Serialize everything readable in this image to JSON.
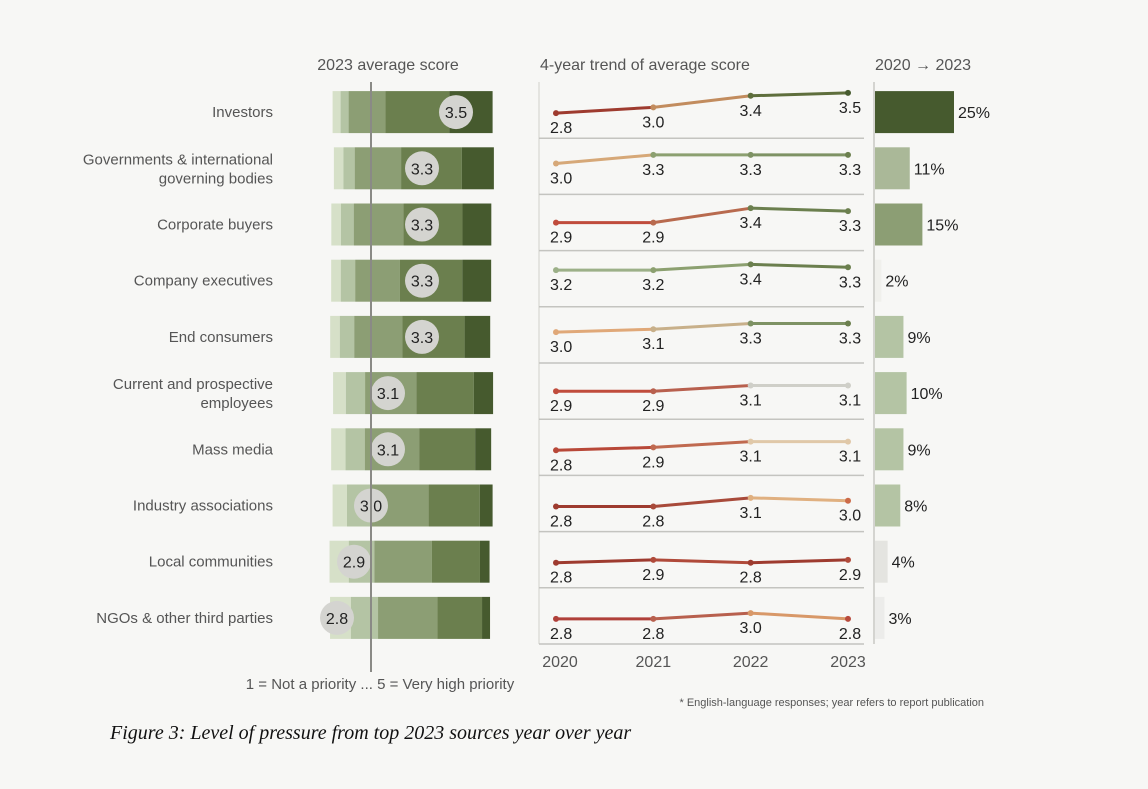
{
  "chart_data": [
    {
      "type": "bar",
      "title": "2023 average score",
      "note": "1 = Not a priority ... 5 = Very high priority",
      "categories": [
        [
          "Investors"
        ],
        [
          "Governments & international",
          "governing bodies"
        ],
        [
          "Corporate buyers"
        ],
        [
          "Company executives"
        ],
        [
          "End consumers"
        ],
        [
          "Current and prospective",
          "employees"
        ],
        [
          "Mass media"
        ],
        [
          "Industry associations"
        ],
        [
          "Local communities"
        ],
        [
          "NGOs & other third parties"
        ]
      ],
      "values": [
        3.5,
        3.3,
        3.3,
        3.3,
        3.3,
        3.1,
        3.1,
        3.0,
        2.9,
        2.8
      ],
      "value_labels": [
        "3.5",
        "3.3",
        "3.3",
        "3.3",
        "3.3",
        "3.1",
        "3.1",
        "3.0",
        "2.9",
        "2.8"
      ],
      "segment_scale": [
        "1",
        "2",
        "3",
        "4",
        "5"
      ],
      "distribution": [
        [
          0.05,
          0.05,
          0.23,
          0.4,
          0.27
        ],
        [
          0.06,
          0.07,
          0.29,
          0.38,
          0.2
        ],
        [
          0.06,
          0.08,
          0.31,
          0.37,
          0.18
        ],
        [
          0.06,
          0.09,
          0.28,
          0.39,
          0.18
        ],
        [
          0.06,
          0.09,
          0.3,
          0.39,
          0.16
        ],
        [
          0.08,
          0.12,
          0.32,
          0.36,
          0.12
        ],
        [
          0.09,
          0.12,
          0.34,
          0.35,
          0.1
        ],
        [
          0.09,
          0.15,
          0.36,
          0.32,
          0.08
        ],
        [
          0.12,
          0.16,
          0.36,
          0.3,
          0.06
        ],
        [
          0.13,
          0.17,
          0.37,
          0.28,
          0.05
        ]
      ],
      "segment_colors": [
        "#d6e0c8",
        "#b4c4a4",
        "#8c9e74",
        "#6b7f4e",
        "#465a2e"
      ]
    },
    {
      "type": "line",
      "title": "4-year trend of average score",
      "x": [
        "2020",
        "2021",
        "2022",
        "2023"
      ],
      "series": [
        {
          "values": [
            2.8,
            3.0,
            3.4,
            3.5
          ],
          "labels": [
            "2.8",
            "3.0",
            "3.4",
            "3.5"
          ],
          "colors": [
            "#9e3b2f",
            "#c28c5e",
            "#5e6e3c",
            "#465a2e"
          ]
        },
        {
          "values": [
            3.0,
            3.3,
            3.3,
            3.3
          ],
          "labels": [
            "3.0",
            "3.3",
            "3.3",
            "3.3"
          ],
          "colors": [
            "#d6a878",
            "#8ca070",
            "#7e9264",
            "#6b7f4e"
          ]
        },
        {
          "values": [
            2.9,
            2.9,
            3.4,
            3.3
          ],
          "labels": [
            "2.9",
            "2.9",
            "3.4",
            "3.3"
          ],
          "colors": [
            "#c04c3c",
            "#b86a4e",
            "#6b7f4e",
            "#6b7f4e"
          ]
        },
        {
          "values": [
            3.2,
            3.2,
            3.4,
            3.3
          ],
          "labels": [
            "3.2",
            "3.2",
            "3.4",
            "3.3"
          ],
          "colors": [
            "#9cb088",
            "#8ca070",
            "#6b7f4e",
            "#6b7f4e"
          ]
        },
        {
          "values": [
            3.0,
            3.1,
            3.3,
            3.3
          ],
          "labels": [
            "3.0",
            "3.1",
            "3.3",
            "3.3"
          ],
          "colors": [
            "#e0a878",
            "#c8b08a",
            "#7e9264",
            "#6b7f4e"
          ]
        },
        {
          "values": [
            2.9,
            2.9,
            3.1,
            3.1
          ],
          "labels": [
            "2.9",
            "2.9",
            "3.1",
            "3.1"
          ],
          "colors": [
            "#c04c3c",
            "#b8604e",
            "#cfcfc8",
            "#cfcfc8"
          ]
        },
        {
          "values": [
            2.8,
            2.9,
            3.1,
            3.1
          ],
          "labels": [
            "2.8",
            "2.9",
            "3.1",
            "3.1"
          ],
          "colors": [
            "#b84838",
            "#c06a50",
            "#e0c8a8",
            "#e0c8a8"
          ]
        },
        {
          "values": [
            2.8,
            2.8,
            3.1,
            3.0
          ],
          "labels": [
            "2.8",
            "2.8",
            "3.1",
            "3.0"
          ],
          "colors": [
            "#9e3b2f",
            "#a84a3a",
            "#e0b080",
            "#cc6a48"
          ]
        },
        {
          "values": [
            2.8,
            2.9,
            2.8,
            2.9
          ],
          "labels": [
            "2.8",
            "2.9",
            "2.8",
            "2.9"
          ],
          "colors": [
            "#9e3b2f",
            "#b04a3a",
            "#9e3b2f",
            "#b04a3a"
          ]
        },
        {
          "values": [
            2.8,
            2.8,
            3.0,
            2.8
          ],
          "labels": [
            "2.8",
            "2.8",
            "3.0",
            "2.8"
          ],
          "colors": [
            "#b0403a",
            "#b8604e",
            "#d89868",
            "#b84a3c"
          ]
        }
      ]
    },
    {
      "type": "bar",
      "title": "2020 → 2023",
      "values": [
        25,
        11,
        15,
        2,
        9,
        10,
        9,
        8,
        4,
        3
      ],
      "value_labels": [
        "25%",
        "11%",
        "15%",
        "2%",
        "9%",
        "10%",
        "9%",
        "8%",
        "4%",
        "3%"
      ],
      "bar_colors": [
        "#465a2e",
        "#aab898",
        "#8c9e74",
        "#f0f0ec",
        "#b4c4a4",
        "#b4c4a4",
        "#b4c4a4",
        "#b4c4a4",
        "#e4e4e0",
        "#ececea"
      ]
    }
  ],
  "footnote": "* English-language responses; year refers to report publication",
  "caption": "Figure 3: Level of pressure from top 2023 sources year over year"
}
